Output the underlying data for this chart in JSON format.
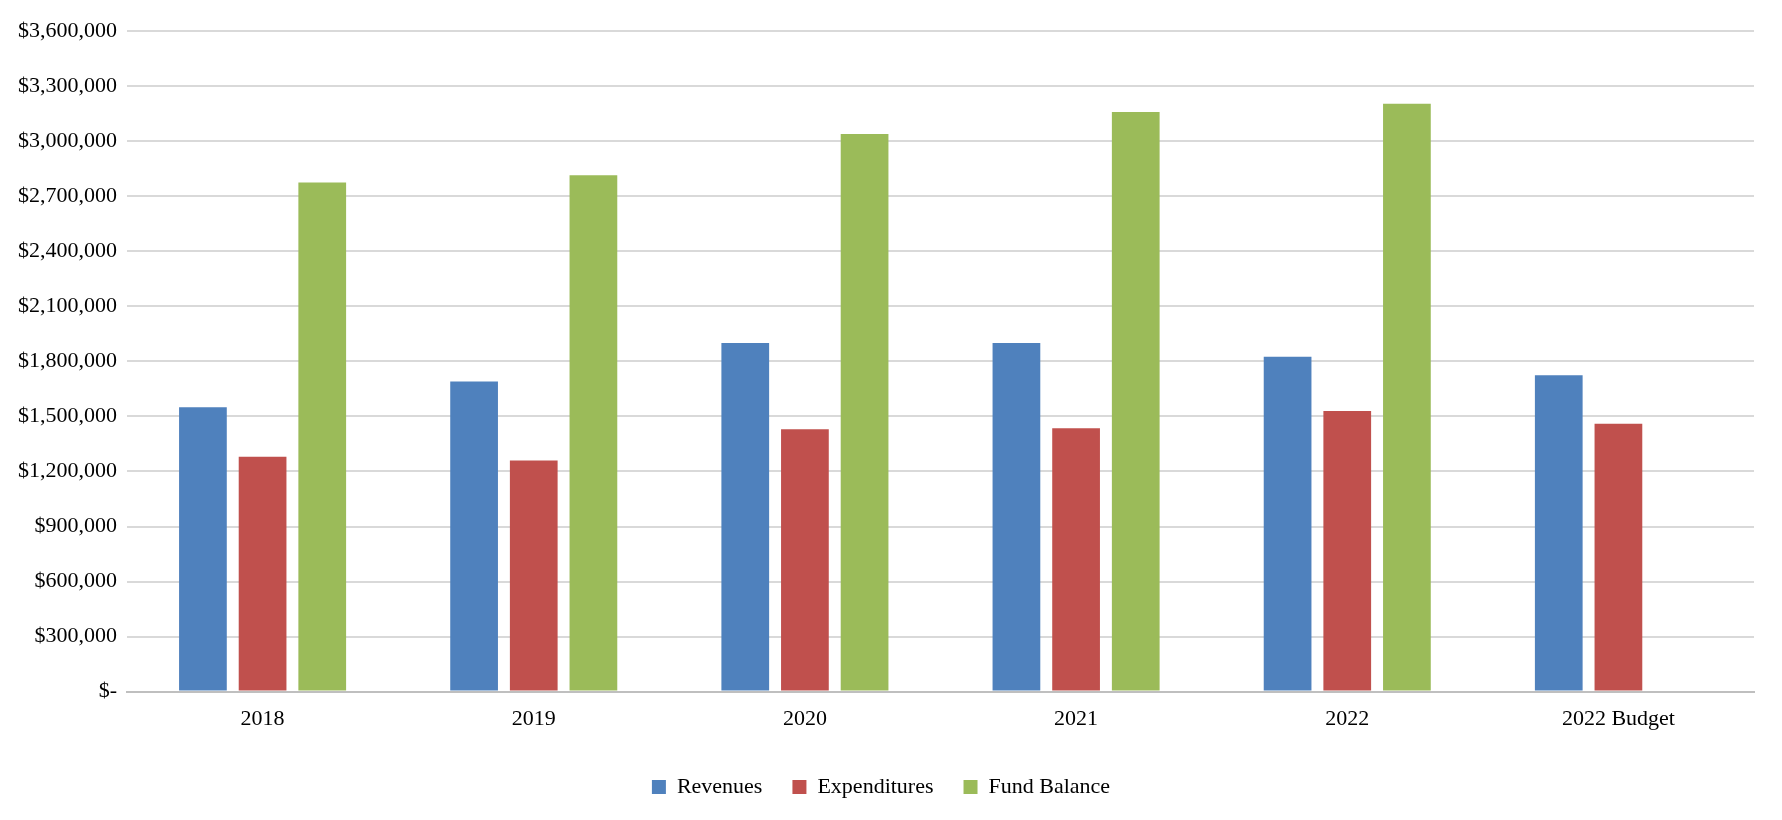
{
  "chart_data": {
    "type": "bar",
    "categories": [
      "2018",
      "2019",
      "2020",
      "2021",
      "2022",
      "2022 Budget"
    ],
    "series": [
      {
        "name": "Revenues",
        "color": "#4f81bd",
        "values": [
          1550000,
          1690000,
          1900000,
          1900000,
          1825000,
          1725000
        ]
      },
      {
        "name": "Expenditures",
        "color": "#c0504d",
        "values": [
          1280000,
          1260000,
          1430000,
          1435000,
          1530000,
          1460000
        ]
      },
      {
        "name": "Fund Balance",
        "color": "#9bbb59",
        "values": [
          2775000,
          2815000,
          3040000,
          3160000,
          3205000,
          null
        ]
      }
    ],
    "ylim": [
      0,
      3600000
    ],
    "yticks": [
      {
        "value": 0,
        "label": "$-"
      },
      {
        "value": 300000,
        "label": "$300,000"
      },
      {
        "value": 600000,
        "label": "$600,000"
      },
      {
        "value": 900000,
        "label": "$900,000"
      },
      {
        "value": 1200000,
        "label": "$1,200,000"
      },
      {
        "value": 1500000,
        "label": "$1,500,000"
      },
      {
        "value": 1800000,
        "label": "$1,800,000"
      },
      {
        "value": 2100000,
        "label": "$2,100,000"
      },
      {
        "value": 2400000,
        "label": "$2,400,000"
      },
      {
        "value": 2700000,
        "label": "$2,700,000"
      },
      {
        "value": 3000000,
        "label": "$3,000,000"
      },
      {
        "value": 3300000,
        "label": "$3,300,000"
      },
      {
        "value": 3600000,
        "label": "$3,600,000"
      }
    ],
    "grid": "y",
    "legend": "bottom"
  }
}
